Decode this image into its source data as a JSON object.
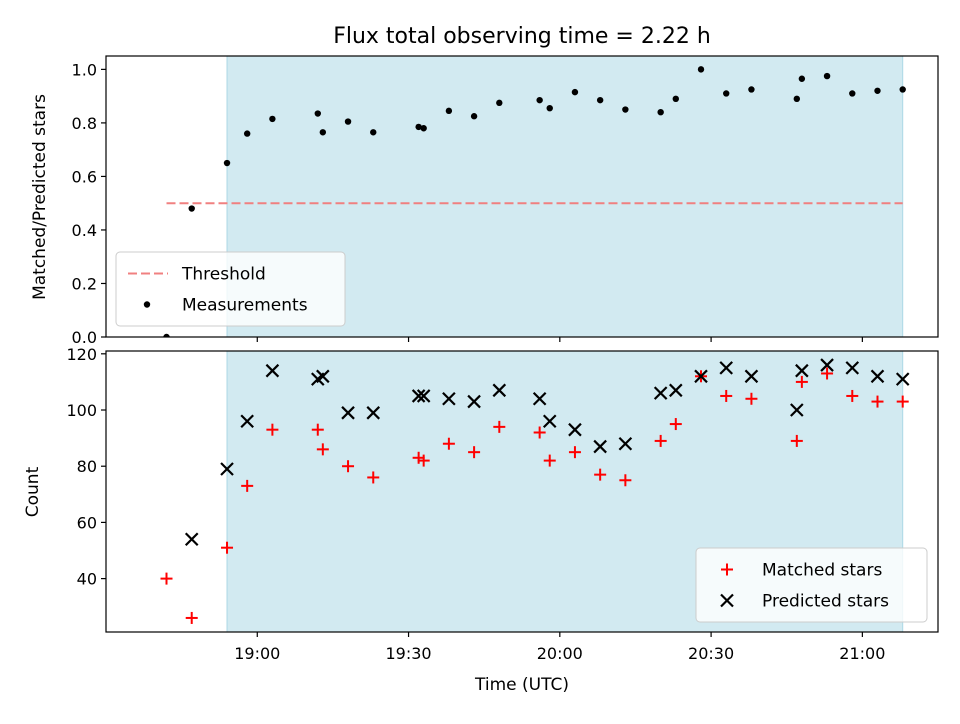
{
  "chart_data": {
    "title": "Flux total observing time = 2.22 h",
    "x_axis": {
      "label": "Time (UTC)",
      "unit": "minutes after 18:00 UTC",
      "range": [
        18.5,
        21.25
      ],
      "ticks": [
        {
          "t": "19:00",
          "label": "19:00"
        },
        {
          "t": "19:30",
          "label": "19:30"
        },
        {
          "t": "20:00",
          "label": "20:00"
        },
        {
          "t": "20:30",
          "label": "20:30"
        },
        {
          "t": "21:00",
          "label": "21:00"
        }
      ]
    },
    "shaded_interval": {
      "start": "18:54",
      "end": "21:08",
      "color": "#add8e6"
    },
    "panels": [
      {
        "type": "scatter",
        "ylabel": "Matched/Predicted stars",
        "ylim": [
          0.0,
          1.05
        ],
        "yticks": [
          "0.0",
          "0.2",
          "0.4",
          "0.6",
          "0.8",
          "1.0"
        ],
        "legend": {
          "position": "lower-left",
          "entries": [
            "Threshold",
            "Measurements"
          ]
        },
        "threshold": {
          "name": "Threshold",
          "value": 0.5,
          "x_start": "18:42",
          "x_end": "21:08",
          "color": "#f08080",
          "style": "dashed"
        },
        "series": [
          {
            "name": "Measurements",
            "marker": "dot",
            "color": "#000000",
            "points": [
              [
                "18:42",
                0.0
              ],
              [
                "18:47",
                0.48
              ],
              [
                "18:54",
                0.65
              ],
              [
                "18:58",
                0.76
              ],
              [
                "19:03",
                0.815
              ],
              [
                "19:12",
                0.835
              ],
              [
                "19:13",
                0.765
              ],
              [
                "19:18",
                0.805
              ],
              [
                "19:23",
                0.765
              ],
              [
                "19:32",
                0.785
              ],
              [
                "19:33",
                0.78
              ],
              [
                "19:38",
                0.845
              ],
              [
                "19:43",
                0.825
              ],
              [
                "19:48",
                0.875
              ],
              [
                "19:56",
                0.885
              ],
              [
                "19:58",
                0.855
              ],
              [
                "20:03",
                0.915
              ],
              [
                "20:08",
                0.885
              ],
              [
                "20:13",
                0.85
              ],
              [
                "20:20",
                0.84
              ],
              [
                "20:23",
                0.89
              ],
              [
                "20:28",
                1.0
              ],
              [
                "20:33",
                0.91
              ],
              [
                "20:38",
                0.925
              ],
              [
                "20:47",
                0.89
              ],
              [
                "20:48",
                0.965
              ],
              [
                "20:53",
                0.975
              ],
              [
                "20:58",
                0.91
              ],
              [
                "21:03",
                0.92
              ],
              [
                "21:08",
                0.925
              ]
            ]
          }
        ]
      },
      {
        "type": "scatter",
        "ylabel": "Count",
        "ylim": [
          21,
          121
        ],
        "yticks": [
          "40",
          "60",
          "80",
          "100",
          "120"
        ],
        "legend": {
          "position": "lower-right",
          "entries": [
            "Matched stars",
            "Predicted stars"
          ]
        },
        "series": [
          {
            "name": "Matched stars",
            "marker": "plus",
            "color": "#ff0000",
            "points": [
              [
                "18:42",
                40
              ],
              [
                "18:47",
                26
              ],
              [
                "18:54",
                51
              ],
              [
                "18:58",
                73
              ],
              [
                "19:03",
                93
              ],
              [
                "19:12",
                93
              ],
              [
                "19:13",
                86
              ],
              [
                "19:18",
                80
              ],
              [
                "19:23",
                76
              ],
              [
                "19:32",
                83
              ],
              [
                "19:33",
                82
              ],
              [
                "19:38",
                88
              ],
              [
                "19:43",
                85
              ],
              [
                "19:48",
                94
              ],
              [
                "19:56",
                92
              ],
              [
                "19:58",
                82
              ],
              [
                "20:03",
                85
              ],
              [
                "20:08",
                77
              ],
              [
                "20:13",
                75
              ],
              [
                "20:20",
                89
              ],
              [
                "20:23",
                95
              ],
              [
                "20:28",
                112
              ],
              [
                "20:33",
                105
              ],
              [
                "20:38",
                104
              ],
              [
                "20:47",
                89
              ],
              [
                "20:48",
                110
              ],
              [
                "20:53",
                113
              ],
              [
                "20:58",
                105
              ],
              [
                "21:03",
                103
              ],
              [
                "21:08",
                103
              ]
            ]
          },
          {
            "name": "Predicted stars",
            "marker": "x",
            "color": "#000000",
            "points": [
              [
                "18:47",
                54
              ],
              [
                "18:54",
                79
              ],
              [
                "18:58",
                96
              ],
              [
                "19:03",
                114
              ],
              [
                "19:12",
                111
              ],
              [
                "19:13",
                112
              ],
              [
                "19:18",
                99
              ],
              [
                "19:23",
                99
              ],
              [
                "19:32",
                105
              ],
              [
                "19:33",
                105
              ],
              [
                "19:38",
                104
              ],
              [
                "19:43",
                103
              ],
              [
                "19:48",
                107
              ],
              [
                "19:56",
                104
              ],
              [
                "19:58",
                96
              ],
              [
                "20:03",
                93
              ],
              [
                "20:08",
                87
              ],
              [
                "20:13",
                88
              ],
              [
                "20:20",
                106
              ],
              [
                "20:23",
                107
              ],
              [
                "20:28",
                112
              ],
              [
                "20:33",
                115
              ],
              [
                "20:38",
                112
              ],
              [
                "20:47",
                100
              ],
              [
                "20:48",
                114
              ],
              [
                "20:53",
                116
              ],
              [
                "20:58",
                115
              ],
              [
                "21:03",
                112
              ],
              [
                "21:08",
                111
              ]
            ]
          }
        ]
      }
    ]
  }
}
